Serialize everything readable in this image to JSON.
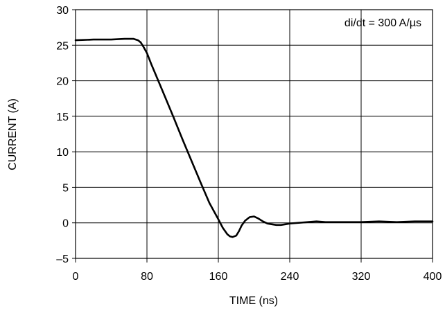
{
  "chart_data": {
    "type": "line",
    "xlabel": "TIME (ns)",
    "ylabel": "CURRENT (A)",
    "annotation": "di/dt = 300 A/µs",
    "xlim": [
      0,
      400
    ],
    "ylim": [
      -5,
      30
    ],
    "x_ticks": [
      0,
      80,
      160,
      240,
      320,
      400
    ],
    "y_ticks": [
      -5,
      0,
      5,
      10,
      15,
      20,
      25,
      30
    ],
    "x_tick_labels": [
      "0",
      "80",
      "160",
      "240",
      "320",
      "400"
    ],
    "y_tick_labels": [
      "–5",
      "0",
      "5",
      "10",
      "15",
      "20",
      "25",
      "30"
    ],
    "grid": true,
    "series": [
      {
        "x": [
          0,
          20,
          40,
          55,
          65,
          70,
          73,
          76,
          80,
          85,
          90,
          100,
          110,
          120,
          130,
          140,
          150,
          160,
          165,
          170,
          173,
          176,
          180,
          183,
          186,
          190,
          195,
          200,
          205,
          210,
          215,
          220,
          225,
          230,
          235,
          240,
          250,
          260,
          270,
          280,
          300,
          320,
          340,
          360,
          380,
          400
        ],
        "y": [
          25.7,
          25.8,
          25.8,
          25.9,
          25.9,
          25.7,
          25.4,
          24.8,
          23.9,
          22.3,
          20.8,
          17.8,
          14.8,
          11.7,
          8.7,
          5.7,
          2.8,
          0.5,
          -0.7,
          -1.6,
          -1.9,
          -2.0,
          -1.8,
          -1.2,
          -0.4,
          0.3,
          0.8,
          0.9,
          0.6,
          0.2,
          -0.1,
          -0.2,
          -0.3,
          -0.3,
          -0.2,
          -0.1,
          0.0,
          0.1,
          0.2,
          0.1,
          0.1,
          0.1,
          0.2,
          0.1,
          0.2,
          0.2
        ]
      }
    ]
  }
}
